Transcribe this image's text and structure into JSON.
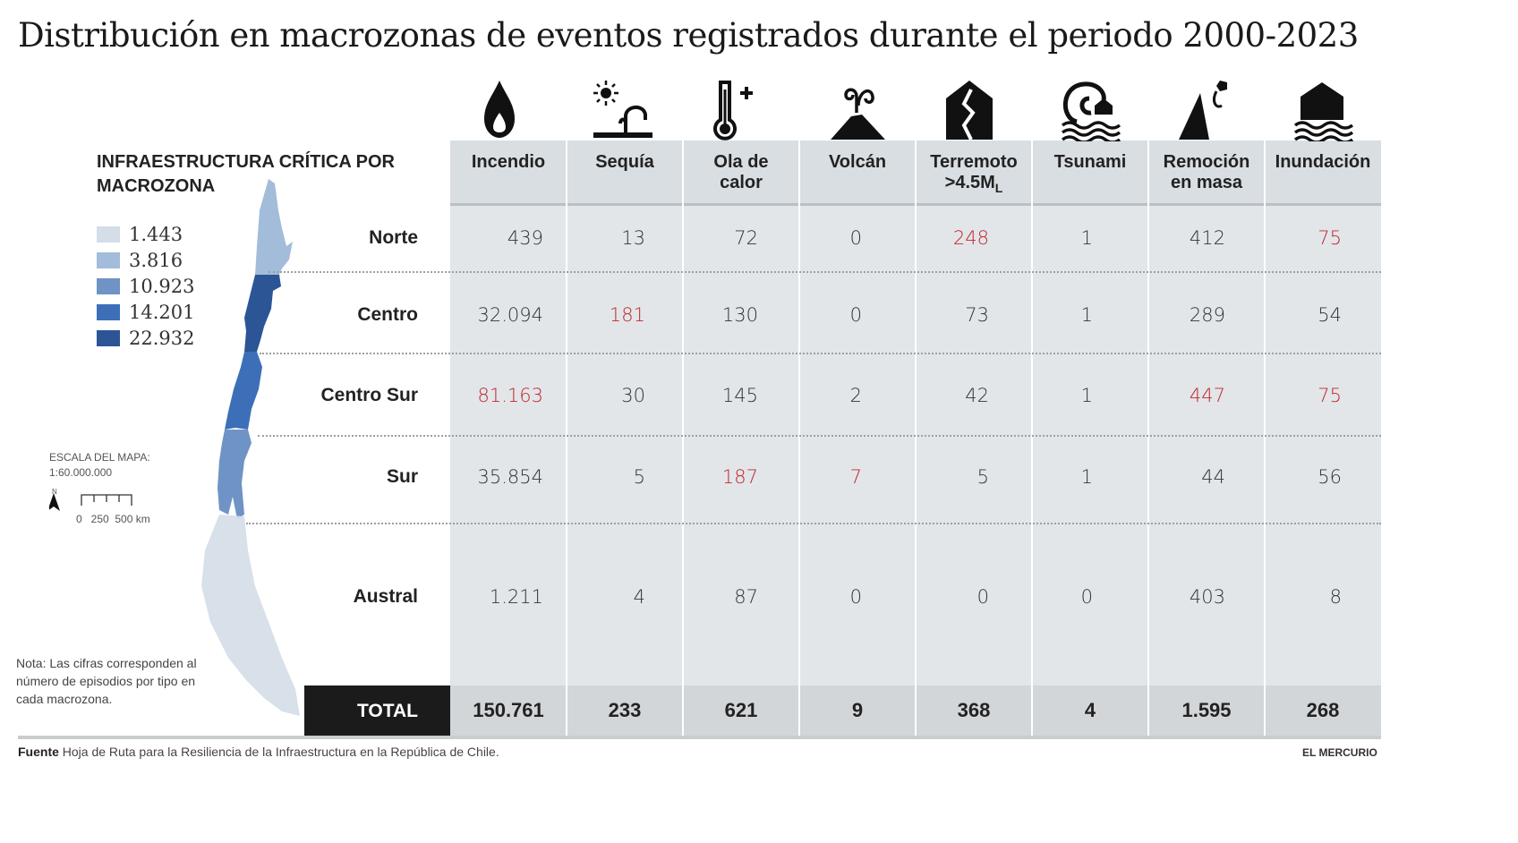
{
  "title": "Distribución en macrozonas de eventos registrados durante el periodo 2000-2023",
  "legend": {
    "title_line1": "INFRAESTRUCTURA CRÍTICA POR",
    "title_line2": "MACROZONA",
    "items": [
      {
        "label": "1.443",
        "color": "#d4dde8"
      },
      {
        "label": "3.816",
        "color": "#a3bcd9"
      },
      {
        "label": "10.923",
        "color": "#6f93c4"
      },
      {
        "label": "14.201",
        "color": "#3c6fb8"
      },
      {
        "label": "22.932",
        "color": "#2b5595"
      }
    ]
  },
  "map_scale": {
    "line1": "ESCALA DEL MAPA:",
    "line2": "1:60.000.000",
    "north": "N",
    "ticks": "0   250  500 km"
  },
  "note": "Nota: Las cifras corresponden al número de episodios por tipo en cada macrozona.",
  "colors": {
    "highlight": "#c0272d",
    "normal": "#333333"
  },
  "chart_data": {
    "type": "table",
    "title": "Distribución en macrozonas de eventos registrados durante el periodo 2000-2023",
    "columns": [
      {
        "label": "Incendio",
        "icon": "fire-drop-icon"
      },
      {
        "label": "Sequía",
        "icon": "drought-icon"
      },
      {
        "label": "Ola de calor",
        "icon": "thermometer-icon"
      },
      {
        "label": "Volcán",
        "icon": "volcano-icon"
      },
      {
        "label": "Terremoto >4.5ML",
        "icon": "earthquake-icon"
      },
      {
        "label": "Tsunami",
        "icon": "tsunami-icon"
      },
      {
        "label": "Remoción en masa",
        "icon": "landslide-icon"
      },
      {
        "label": "Inundación",
        "icon": "flood-icon"
      }
    ],
    "header_lines": [
      [
        "Incendio"
      ],
      [
        "Sequía"
      ],
      [
        "Ola de",
        "calor"
      ],
      [
        "Volcán"
      ],
      [
        "Terremoto",
        ">4.5M",
        "L"
      ],
      [
        "Tsunami"
      ],
      [
        "Remoción",
        "en masa"
      ],
      [
        "Inundación"
      ]
    ],
    "rows": [
      {
        "zone": "Norte",
        "values": [
          "439",
          "13",
          "72",
          "0",
          "248",
          "1",
          "412",
          "75"
        ],
        "highlight": [
          false,
          false,
          false,
          false,
          true,
          false,
          false,
          true
        ]
      },
      {
        "zone": "Centro",
        "values": [
          "32.094",
          "181",
          "130",
          "0",
          "73",
          "1",
          "289",
          "54"
        ],
        "highlight": [
          false,
          true,
          false,
          false,
          false,
          false,
          false,
          false
        ]
      },
      {
        "zone": "Centro Sur",
        "values": [
          "81.163",
          "30",
          "145",
          "2",
          "42",
          "1",
          "447",
          "75"
        ],
        "highlight": [
          true,
          false,
          false,
          false,
          false,
          false,
          true,
          true
        ]
      },
      {
        "zone": "Sur",
        "values": [
          "35.854",
          "5",
          "187",
          "7",
          "5",
          "1",
          "44",
          "56"
        ],
        "highlight": [
          false,
          false,
          true,
          true,
          false,
          false,
          false,
          false
        ]
      },
      {
        "zone": "Austral",
        "values": [
          "1.211",
          "4",
          "87",
          "0",
          "0",
          "0",
          "403",
          "8"
        ],
        "highlight": [
          false,
          false,
          false,
          false,
          false,
          false,
          false,
          false
        ]
      }
    ],
    "total": {
      "label": "TOTAL",
      "values": [
        "150.761",
        "233",
        "621",
        "9",
        "368",
        "4",
        "1.595",
        "268"
      ]
    }
  },
  "footer": {
    "source_label": "Fuente",
    "source_text": " Hoja de Ruta para la Resiliencia de la Infraestructura en la República de Chile.",
    "brand": "EL MERCURIO"
  }
}
